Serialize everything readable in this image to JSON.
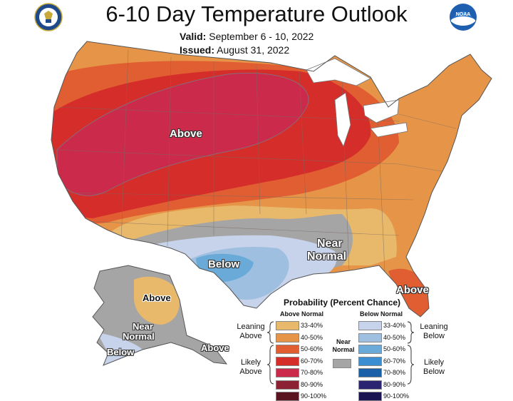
{
  "title": "6-10 Day Temperature Outlook",
  "valid_label": "Valid:",
  "valid_value": "September 6 - 10, 2022",
  "issued_label": "Issued:",
  "issued_value": "August 31, 2022",
  "logos": {
    "left": "commerce-seal-icon",
    "right": "noaa-logo-icon",
    "noaa_text": "NOAA"
  },
  "map_labels": {
    "above_main": "Above",
    "below_texas": "Below",
    "near_normal_1": "Near",
    "near_normal_2": "Normal",
    "above_florida": "Above",
    "alaska_above": "Above",
    "alaska_near_1": "Near",
    "alaska_near_2": "Normal",
    "alaska_below": "Below",
    "alaska_above_south": "Above"
  },
  "legend": {
    "title": "Probability (Percent Chance)",
    "above_header": "Above Normal",
    "below_header": "Below Normal",
    "near_label_1": "Near",
    "near_label_2": "Normal",
    "leaning_above": [
      "Leaning",
      "Above"
    ],
    "likely_above": [
      "Likely",
      "Above"
    ],
    "leaning_below": [
      "Leaning",
      "Below"
    ],
    "likely_below": [
      "Likely",
      "Below"
    ],
    "above_classes": [
      {
        "label": "33-40%",
        "color": "#e8b86b"
      },
      {
        "label": "40-50%",
        "color": "#e69548"
      },
      {
        "label": "50-60%",
        "color": "#e15e32"
      },
      {
        "label": "60-70%",
        "color": "#d52d2a"
      },
      {
        "label": "70-80%",
        "color": "#cc2a4a"
      },
      {
        "label": "80-90%",
        "color": "#8c2133"
      },
      {
        "label": "90-100%",
        "color": "#5a1420"
      }
    ],
    "below_classes": [
      {
        "label": "33-40%",
        "color": "#c7d3ea"
      },
      {
        "label": "40-50%",
        "color": "#9fbfe0"
      },
      {
        "label": "50-60%",
        "color": "#6aaad9"
      },
      {
        "label": "60-70%",
        "color": "#3b8ed1"
      },
      {
        "label": "70-80%",
        "color": "#1b5fa8"
      },
      {
        "label": "80-90%",
        "color": "#2b2470"
      },
      {
        "label": "90-100%",
        "color": "#1a1550"
      }
    ],
    "near_color": "#a5a5a5"
  }
}
